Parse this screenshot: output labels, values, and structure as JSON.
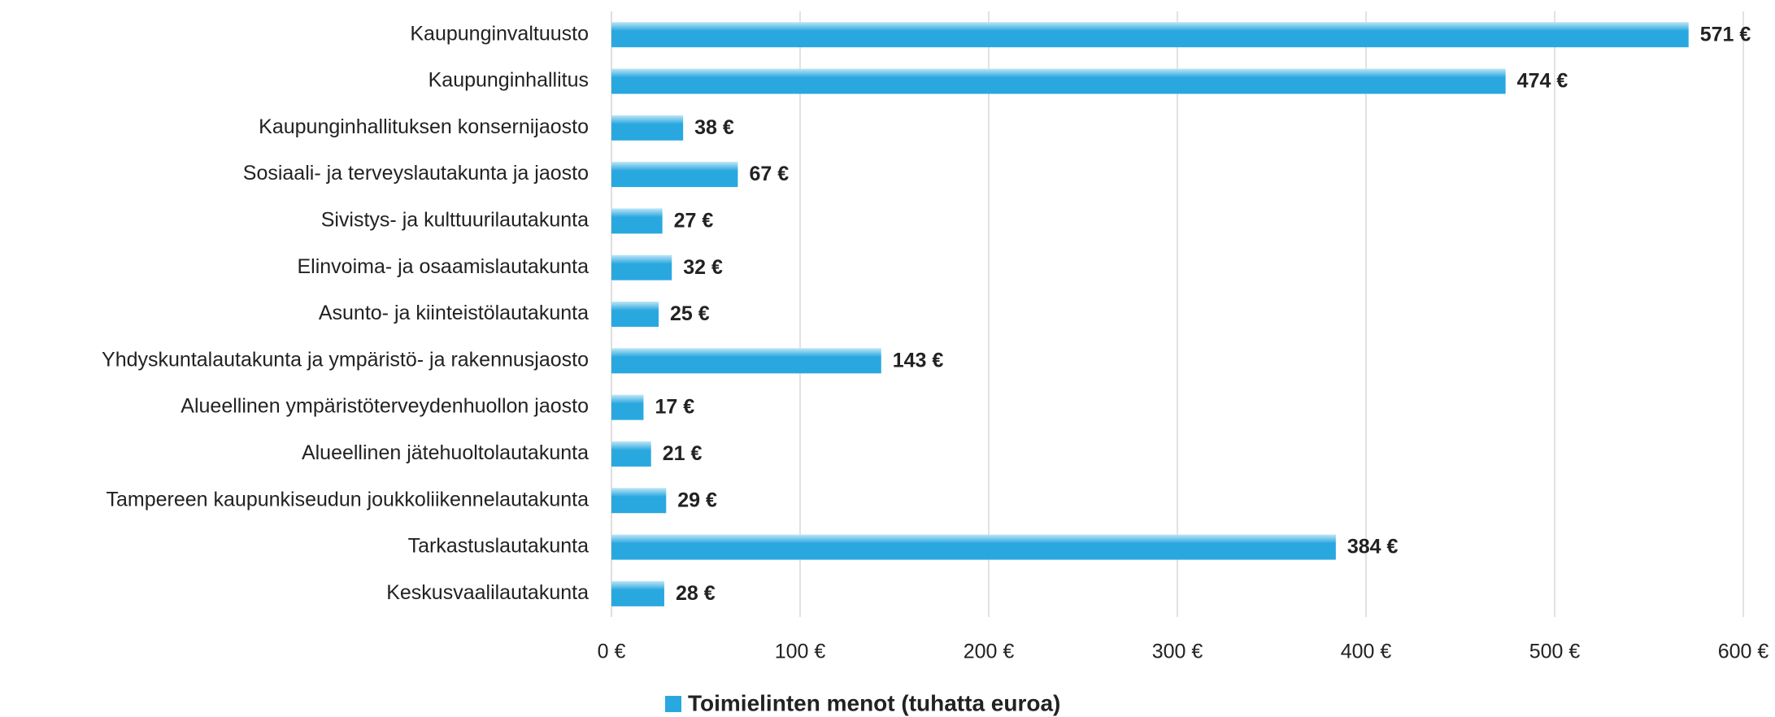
{
  "chart_data": {
    "type": "bar",
    "orientation": "horizontal",
    "categories": [
      "Kaupunginvaltuusto",
      "Kaupunginhallitus",
      "Kaupunginhallituksen konsernijaosto",
      "Sosiaali- ja terveyslautakunta ja jaosto",
      "Sivistys- ja kulttuurilautakunta",
      "Elinvoima- ja osaamislautakunta",
      "Asunto- ja kiinteistölautakunta",
      "Yhdyskuntalautakunta ja ympäristö- ja rakennusjaosto",
      "Alueellinen ympäristöterveydenhuollon jaosto",
      "Alueellinen jätehuoltolautakunta",
      "Tampereen kaupunkiseudun joukkoliikennelautakunta",
      "Tarkastuslautakunta",
      "Keskusvaalilautakunta"
    ],
    "series": [
      {
        "name": "Toimielinten menot (tuhatta euroa)",
        "color": "#29a8e0",
        "values": [
          571,
          474,
          38,
          67,
          27,
          32,
          25,
          143,
          17,
          21,
          29,
          384,
          28
        ],
        "value_labels": [
          "571 €",
          "474 €",
          "38 €",
          "67 €",
          "27 €",
          "32 €",
          "25 €",
          "143 €",
          "17 €",
          "21 €",
          "29 €",
          "384 €",
          "28 €"
        ]
      }
    ],
    "xlim": [
      0,
      600
    ],
    "xticks": [
      {
        "value": 0,
        "label": "0 €"
      },
      {
        "value": 100,
        "label": "100 €"
      },
      {
        "value": 200,
        "label": "200 €"
      },
      {
        "value": 300,
        "label": "300 €"
      },
      {
        "value": 400,
        "label": "400 €"
      },
      {
        "value": 500,
        "label": "500 €"
      },
      {
        "value": 600,
        "label": "600 €"
      }
    ],
    "grid": true,
    "legend": "bottom"
  }
}
